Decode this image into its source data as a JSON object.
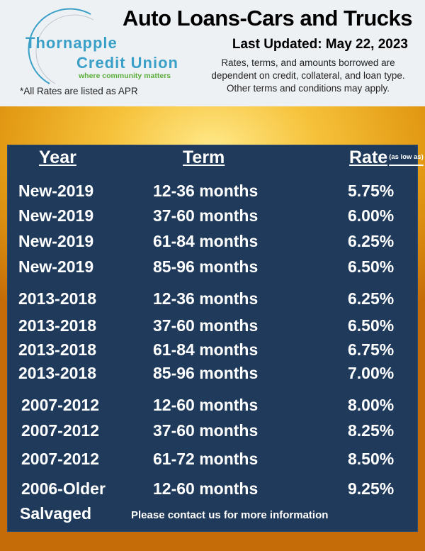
{
  "logo": {
    "line1": "Thornapple",
    "line2": "Credit Union",
    "tagline": "where community matters"
  },
  "apr_note": "*All Rates are listed as APR",
  "title": "Auto Loans-Cars and Trucks",
  "updated": "Last Updated: May 22, 2023",
  "disclaimer": "Rates, terms, and amounts borrowed are dependent on credit, collateral, and loan type. Other terms and conditions may apply.",
  "table": {
    "headers": {
      "year": "Year",
      "term": "Term",
      "rate": "Rate",
      "rate_note": "(as low as)"
    },
    "rows": [
      {
        "year": "New-2019",
        "term": "12-36 months",
        "rate": "5.75%"
      },
      {
        "year": "New-2019",
        "term": "37-60 months",
        "rate": "6.00%"
      },
      {
        "year": "New-2019",
        "term": "61-84 months",
        "rate": "6.25%"
      },
      {
        "year": "New-2019",
        "term": "85-96 months",
        "rate": "6.50%"
      },
      {
        "year": "2013-2018",
        "term": "12-36 months",
        "rate": "6.25%"
      },
      {
        "year": "2013-2018",
        "term": "37-60 months",
        "rate": "6.50%"
      },
      {
        "year": "2013-2018",
        "term": "61-84 months",
        "rate": "6.75%"
      },
      {
        "year": "2013-2018",
        "term": "85-96 months",
        "rate": "7.00%"
      },
      {
        "year": "2007-2012",
        "term": "12-60 months",
        "rate": "8.00%"
      },
      {
        "year": "2007-2012",
        "term": "37-60 months",
        "rate": "8.25%"
      },
      {
        "year": "2007-2012",
        "term": "61-72 months",
        "rate": "8.50%"
      },
      {
        "year": "2006-Older",
        "term": "12-60 months",
        "rate": "9.25%"
      }
    ],
    "salvaged": {
      "year": "Salvaged",
      "note": "Please contact us for more information"
    }
  },
  "colors": {
    "panel": "#1f3a5a",
    "logo_blue": "#3aa0c8",
    "logo_green": "#5aae3a"
  }
}
